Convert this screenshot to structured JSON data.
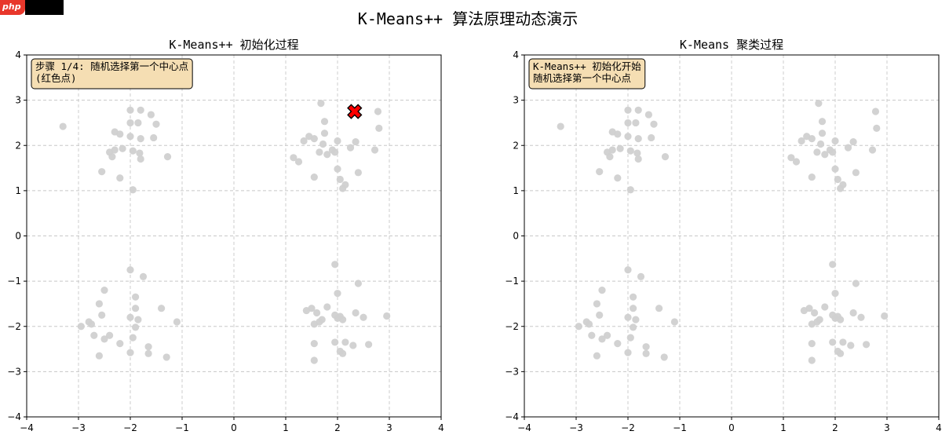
{
  "suptitle": "K-Means++ 算法原理动态演示",
  "colors": {
    "point": "#d0d0d0",
    "centroid": "#ff0000",
    "annotation_bg": "#f5deb3",
    "grid": "#c8c8c8"
  },
  "chart_data": [
    {
      "type": "scatter",
      "title": "K-Means++ 初始化过程",
      "xlim": [
        -4,
        4
      ],
      "ylim": [
        -4,
        4
      ],
      "xticks": [
        -4,
        -3,
        -2,
        -1,
        0,
        1,
        2,
        3,
        4
      ],
      "yticks": [
        -4,
        -3,
        -2,
        -1,
        0,
        1,
        2,
        3,
        4
      ],
      "grid": true,
      "annotation": [
        "步骤 1/4: 随机选择第一个中心点",
        "(红色点)"
      ],
      "centroids": [
        [
          2.33,
          2.75
        ]
      ],
      "points": [
        [
          -3.3,
          2.42
        ],
        [
          -2.0,
          2.78
        ],
        [
          -1.8,
          2.78
        ],
        [
          -1.6,
          2.68
        ],
        [
          -2.0,
          2.5
        ],
        [
          -1.85,
          2.5
        ],
        [
          -1.5,
          2.47
        ],
        [
          -2.3,
          2.3
        ],
        [
          -2.2,
          2.25
        ],
        [
          -2.0,
          2.2
        ],
        [
          -1.55,
          2.17
        ],
        [
          -1.8,
          2.15
        ],
        [
          -2.4,
          1.85
        ],
        [
          -2.3,
          1.9
        ],
        [
          -2.15,
          1.93
        ],
        [
          -1.95,
          1.88
        ],
        [
          -1.82,
          1.83
        ],
        [
          -2.35,
          1.75
        ],
        [
          -1.8,
          1.7
        ],
        [
          -1.28,
          1.75
        ],
        [
          -2.55,
          1.42
        ],
        [
          -2.2,
          1.28
        ],
        [
          -1.95,
          1.02
        ],
        [
          1.68,
          2.93
        ],
        [
          2.78,
          2.75
        ],
        [
          1.75,
          2.53
        ],
        [
          2.8,
          2.38
        ],
        [
          1.75,
          2.27
        ],
        [
          1.45,
          2.2
        ],
        [
          1.35,
          2.1
        ],
        [
          1.55,
          2.15
        ],
        [
          2.0,
          2.1
        ],
        [
          1.72,
          2.03
        ],
        [
          2.35,
          2.08
        ],
        [
          2.25,
          1.95
        ],
        [
          2.72,
          1.9
        ],
        [
          1.65,
          1.85
        ],
        [
          1.9,
          1.9
        ],
        [
          1.95,
          1.85
        ],
        [
          1.8,
          1.8
        ],
        [
          1.15,
          1.73
        ],
        [
          1.25,
          1.64
        ],
        [
          2.0,
          1.48
        ],
        [
          2.4,
          1.4
        ],
        [
          1.55,
          1.3
        ],
        [
          2.05,
          1.25
        ],
        [
          2.15,
          1.13
        ],
        [
          2.1,
          1.05
        ],
        [
          -2.0,
          -0.75
        ],
        [
          -1.75,
          -0.9
        ],
        [
          -2.5,
          -1.2
        ],
        [
          -1.9,
          -1.35
        ],
        [
          -2.6,
          -1.5
        ],
        [
          -1.4,
          -1.6
        ],
        [
          -1.9,
          -1.6
        ],
        [
          -2.55,
          -1.75
        ],
        [
          -2.0,
          -1.8
        ],
        [
          -1.85,
          -1.85
        ],
        [
          -2.8,
          -1.9
        ],
        [
          -1.1,
          -1.9
        ],
        [
          -2.75,
          -1.95
        ],
        [
          -2.95,
          -2.0
        ],
        [
          -1.9,
          -2.02
        ],
        [
          -2.7,
          -2.2
        ],
        [
          -2.4,
          -2.2
        ],
        [
          -2.5,
          -2.28
        ],
        [
          -1.95,
          -2.25
        ],
        [
          -2.2,
          -2.38
        ],
        [
          -1.65,
          -2.45
        ],
        [
          -2.0,
          -2.58
        ],
        [
          -1.65,
          -2.6
        ],
        [
          -2.6,
          -2.65
        ],
        [
          -1.3,
          -2.68
        ],
        [
          1.95,
          -0.63
        ],
        [
          2.4,
          -1.05
        ],
        [
          2.0,
          -1.27
        ],
        [
          1.5,
          -1.6
        ],
        [
          1.8,
          -1.57
        ],
        [
          1.4,
          -1.65
        ],
        [
          1.6,
          -1.7
        ],
        [
          2.05,
          -1.78
        ],
        [
          2.0,
          -1.82
        ],
        [
          2.35,
          -1.7
        ],
        [
          2.5,
          -1.8
        ],
        [
          2.95,
          -1.77
        ],
        [
          1.65,
          -1.9
        ],
        [
          1.55,
          -1.95
        ],
        [
          2.1,
          -1.85
        ],
        [
          1.7,
          -1.85
        ],
        [
          1.95,
          -1.75
        ],
        [
          1.55,
          -2.38
        ],
        [
          1.95,
          -2.35
        ],
        [
          2.15,
          -2.35
        ],
        [
          2.3,
          -2.42
        ],
        [
          2.6,
          -2.4
        ],
        [
          2.05,
          -2.55
        ],
        [
          2.1,
          -2.6
        ],
        [
          1.55,
          -2.75
        ]
      ]
    },
    {
      "type": "scatter",
      "title": "K-Means 聚类过程",
      "xlim": [
        -4,
        4
      ],
      "ylim": [
        -4,
        4
      ],
      "xticks": [
        -4,
        -3,
        -2,
        -1,
        0,
        1,
        2,
        3,
        4
      ],
      "yticks": [
        -4,
        -3,
        -2,
        -1,
        0,
        1,
        2,
        3,
        4
      ],
      "grid": true,
      "annotation": [
        "K-Means++ 初始化开始",
        "随机选择第一个中心点"
      ],
      "centroids": [],
      "points": [
        [
          -3.3,
          2.42
        ],
        [
          -2.0,
          2.78
        ],
        [
          -1.8,
          2.78
        ],
        [
          -1.6,
          2.68
        ],
        [
          -2.0,
          2.5
        ],
        [
          -1.85,
          2.5
        ],
        [
          -1.5,
          2.47
        ],
        [
          -2.3,
          2.3
        ],
        [
          -2.2,
          2.25
        ],
        [
          -2.0,
          2.2
        ],
        [
          -1.55,
          2.17
        ],
        [
          -1.8,
          2.15
        ],
        [
          -2.4,
          1.85
        ],
        [
          -2.3,
          1.9
        ],
        [
          -2.15,
          1.93
        ],
        [
          -1.95,
          1.88
        ],
        [
          -1.82,
          1.83
        ],
        [
          -2.35,
          1.75
        ],
        [
          -1.8,
          1.7
        ],
        [
          -1.28,
          1.75
        ],
        [
          -2.55,
          1.42
        ],
        [
          -2.2,
          1.28
        ],
        [
          -1.95,
          1.02
        ],
        [
          1.68,
          2.93
        ],
        [
          2.78,
          2.75
        ],
        [
          1.75,
          2.53
        ],
        [
          2.8,
          2.38
        ],
        [
          1.75,
          2.27
        ],
        [
          1.45,
          2.2
        ],
        [
          1.35,
          2.1
        ],
        [
          1.55,
          2.15
        ],
        [
          2.0,
          2.1
        ],
        [
          1.72,
          2.03
        ],
        [
          2.35,
          2.08
        ],
        [
          2.25,
          1.95
        ],
        [
          2.72,
          1.9
        ],
        [
          1.65,
          1.85
        ],
        [
          1.9,
          1.9
        ],
        [
          1.95,
          1.85
        ],
        [
          1.8,
          1.8
        ],
        [
          1.15,
          1.73
        ],
        [
          1.25,
          1.64
        ],
        [
          2.0,
          1.48
        ],
        [
          2.4,
          1.4
        ],
        [
          1.55,
          1.3
        ],
        [
          2.05,
          1.25
        ],
        [
          2.15,
          1.13
        ],
        [
          2.1,
          1.05
        ],
        [
          -2.0,
          -0.75
        ],
        [
          -1.75,
          -0.9
        ],
        [
          -2.5,
          -1.2
        ],
        [
          -1.9,
          -1.35
        ],
        [
          -2.6,
          -1.5
        ],
        [
          -1.4,
          -1.6
        ],
        [
          -1.9,
          -1.6
        ],
        [
          -2.55,
          -1.75
        ],
        [
          -2.0,
          -1.8
        ],
        [
          -1.85,
          -1.85
        ],
        [
          -2.8,
          -1.9
        ],
        [
          -1.1,
          -1.9
        ],
        [
          -2.75,
          -1.95
        ],
        [
          -2.95,
          -2.0
        ],
        [
          -1.9,
          -2.02
        ],
        [
          -2.7,
          -2.2
        ],
        [
          -2.4,
          -2.2
        ],
        [
          -2.5,
          -2.28
        ],
        [
          -1.95,
          -2.25
        ],
        [
          -2.2,
          -2.38
        ],
        [
          -1.65,
          -2.45
        ],
        [
          -2.0,
          -2.58
        ],
        [
          -1.65,
          -2.6
        ],
        [
          -2.6,
          -2.65
        ],
        [
          -1.3,
          -2.68
        ],
        [
          1.95,
          -0.63
        ],
        [
          2.4,
          -1.05
        ],
        [
          2.0,
          -1.27
        ],
        [
          1.5,
          -1.6
        ],
        [
          1.8,
          -1.57
        ],
        [
          1.4,
          -1.65
        ],
        [
          1.6,
          -1.7
        ],
        [
          2.05,
          -1.78
        ],
        [
          2.0,
          -1.82
        ],
        [
          2.35,
          -1.7
        ],
        [
          2.5,
          -1.8
        ],
        [
          2.95,
          -1.77
        ],
        [
          1.65,
          -1.9
        ],
        [
          1.55,
          -1.95
        ],
        [
          2.1,
          -1.85
        ],
        [
          1.7,
          -1.85
        ],
        [
          1.95,
          -1.75
        ],
        [
          1.55,
          -2.38
        ],
        [
          1.95,
          -2.35
        ],
        [
          2.15,
          -2.35
        ],
        [
          2.3,
          -2.42
        ],
        [
          2.6,
          -2.4
        ],
        [
          2.05,
          -2.55
        ],
        [
          2.1,
          -2.6
        ],
        [
          1.55,
          -2.75
        ]
      ]
    }
  ]
}
